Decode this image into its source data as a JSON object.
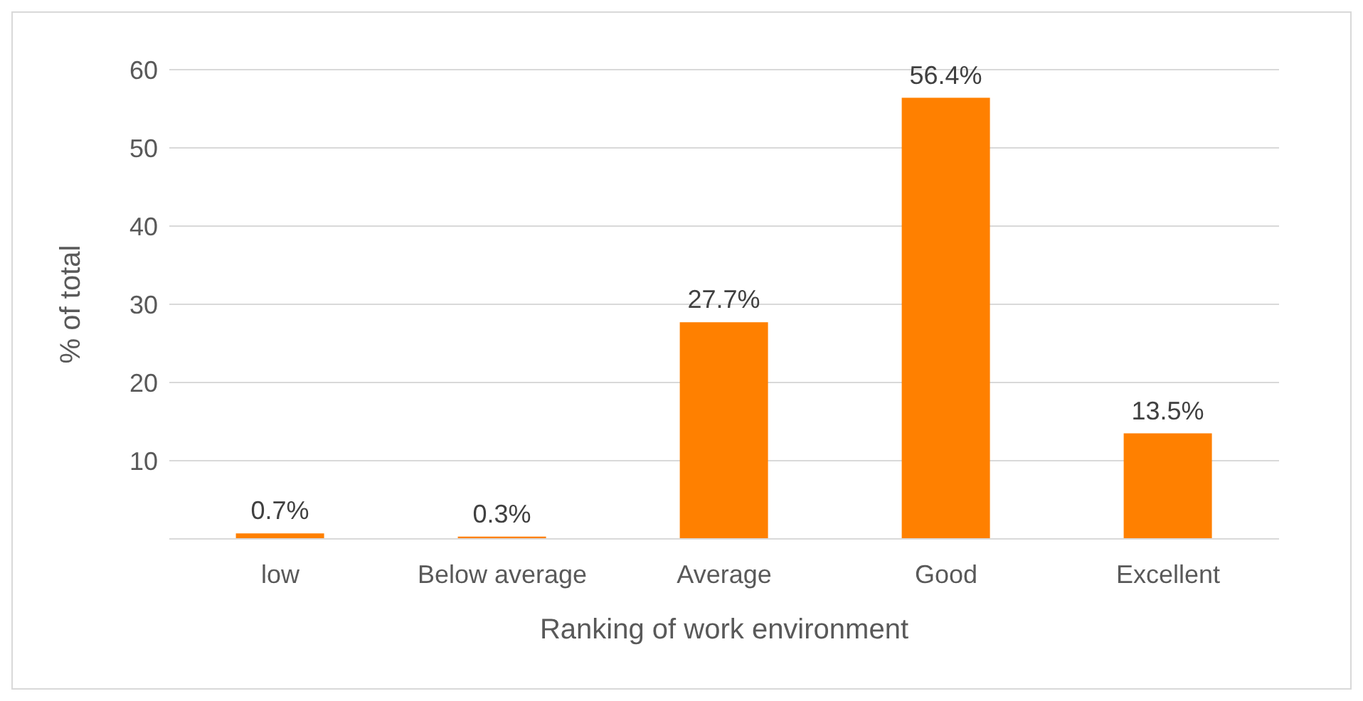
{
  "chart_data": {
    "type": "bar",
    "xlabel": "Ranking of work environment",
    "ylabel": "% of total",
    "categories": [
      "low",
      "Below average",
      "Average",
      "Good",
      "Excellent"
    ],
    "values": [
      0.7,
      0.3,
      27.7,
      56.4,
      13.5
    ],
    "value_labels": [
      "0.7%",
      "0.3%",
      "27.7%",
      "56.4%",
      "13.5%"
    ],
    "color": "#ff8000",
    "ylim": [
      0,
      60
    ],
    "yticks": [
      {
        "value": 0,
        "label": null
      },
      10,
      20,
      30,
      40,
      50,
      60
    ],
    "grid": "y"
  }
}
